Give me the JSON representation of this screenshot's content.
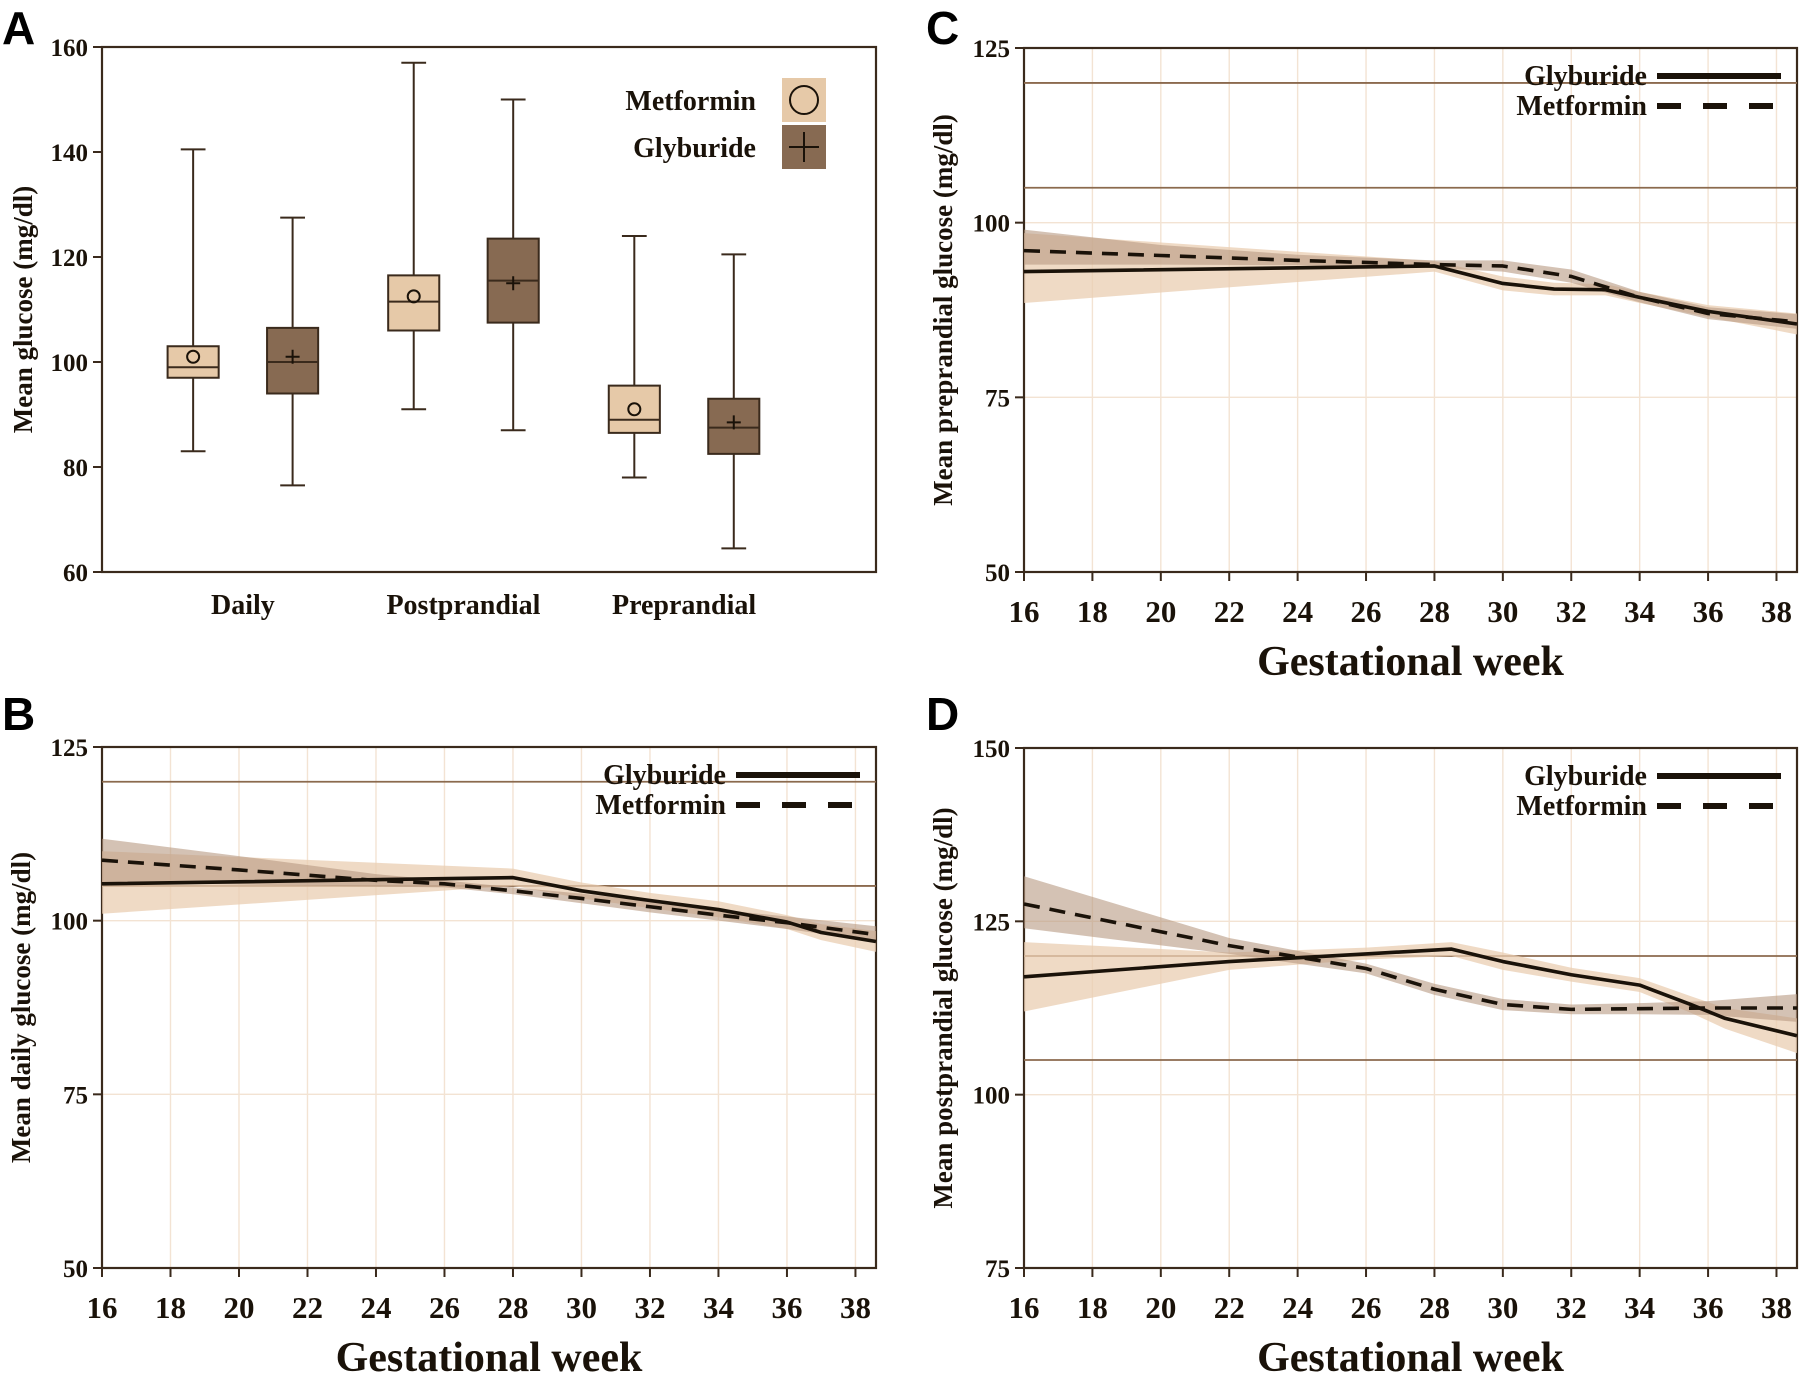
{
  "colors": {
    "metformin_box": "#e6c9a8",
    "glyburide_box": "#876a52",
    "axis": "#3a2a1c",
    "grid": "#f3e3d3",
    "ref_line": "#8b6a4e",
    "band_light": "#e9cdb2",
    "band_dark": "#b79a82",
    "line": "#1a1209"
  },
  "panels": {
    "A": {
      "letter": "A"
    },
    "B": {
      "letter": "B"
    },
    "C": {
      "letter": "C"
    },
    "D": {
      "letter": "D"
    }
  },
  "chart_data": [
    {
      "panel": "A",
      "type": "box",
      "ylabel": "Mean glucose (mg/dl)",
      "ylim": [
        60,
        160
      ],
      "yticks": [
        60,
        80,
        100,
        120,
        140,
        160
      ],
      "categories": [
        "Daily",
        "Postprandial",
        "Preprandial"
      ],
      "legend": {
        "position": "top-right",
        "entries": [
          {
            "name": "Metformin",
            "symbol": "circle"
          },
          {
            "name": "Glyburide",
            "symbol": "plus"
          }
        ]
      },
      "series": [
        {
          "name": "Metformin",
          "boxes": [
            {
              "min": 83,
              "q1": 97,
              "median": 99,
              "q3": 103,
              "max": 140.5,
              "mean": 101
            },
            {
              "min": 91,
              "q1": 106,
              "median": 111.5,
              "q3": 116.5,
              "max": 157,
              "mean": 112.5
            },
            {
              "min": 78,
              "q1": 86.5,
              "median": 89,
              "q3": 95.5,
              "max": 124,
              "mean": 91
            }
          ]
        },
        {
          "name": "Glyburide",
          "boxes": [
            {
              "min": 76.5,
              "q1": 94,
              "median": 100,
              "q3": 106.5,
              "max": 127.5,
              "mean": 101
            },
            {
              "min": 87,
              "q1": 107.5,
              "median": 115.5,
              "q3": 123.5,
              "max": 150,
              "mean": 115
            },
            {
              "min": 64.5,
              "q1": 82.5,
              "median": 87.5,
              "q3": 93,
              "max": 120.5,
              "mean": 88.5
            }
          ]
        }
      ]
    },
    {
      "panel": "B",
      "type": "line",
      "xlabel": "Gestational week",
      "ylabel": "Mean daily glucose (mg/dl)",
      "xlim": [
        16,
        38.6
      ],
      "ylim": [
        50,
        125
      ],
      "xticks": [
        16,
        18,
        20,
        22,
        24,
        26,
        28,
        30,
        32,
        34,
        36,
        38
      ],
      "yticks": [
        50,
        75,
        100,
        125
      ],
      "ref_lines": [
        105,
        120
      ],
      "legend": {
        "position": "top-right"
      },
      "series": [
        {
          "name": "Glyburide",
          "style": "solid",
          "x": [
            16,
            28,
            30,
            32,
            34,
            36,
            37,
            38.6
          ],
          "y": [
            105.3,
            106.2,
            104.3,
            102.9,
            101.6,
            99.8,
            98.3,
            97
          ],
          "lower": [
            101,
            105,
            103.2,
            101.8,
            100.5,
            98.8,
            97.2,
            95.5
          ],
          "upper": [
            110,
            107.5,
            105.5,
            104,
            102.8,
            100.8,
            99.5,
            98.5
          ]
        },
        {
          "name": "Metformin",
          "style": "dashed",
          "x": [
            16,
            20,
            24,
            26,
            28,
            30,
            32,
            34,
            36,
            38.6
          ],
          "y": [
            108.7,
            107.3,
            105.8,
            105.3,
            104.3,
            103.2,
            102,
            100.8,
            99.7,
            98
          ],
          "lower": [
            105.5,
            105.2,
            104.9,
            104.8,
            103.8,
            102.5,
            101.2,
            100,
            98.8,
            97
          ],
          "upper": [
            111.8,
            109.3,
            106.7,
            105.8,
            104.8,
            103.9,
            102.8,
            101.6,
            100.6,
            99.2
          ]
        }
      ]
    },
    {
      "panel": "C",
      "type": "line",
      "xlabel": "Gestational week",
      "ylabel": "Mean preprandial glucose (mg/dl)",
      "xlim": [
        16,
        38.6
      ],
      "ylim": [
        50,
        125
      ],
      "xticks": [
        16,
        18,
        20,
        22,
        24,
        26,
        28,
        30,
        32,
        34,
        36,
        38
      ],
      "yticks": [
        50,
        75,
        100,
        125
      ],
      "ref_lines": [
        105,
        120
      ],
      "legend": {
        "position": "top-right"
      },
      "series": [
        {
          "name": "Glyburide",
          "style": "solid",
          "x": [
            16,
            28,
            30,
            31.5,
            33,
            34,
            36,
            38.6
          ],
          "y": [
            93,
            93.8,
            91.3,
            90.5,
            90.4,
            89.3,
            87.3,
            85.5
          ],
          "lower": [
            88.5,
            93,
            90.3,
            89.6,
            89.6,
            88.5,
            86.5,
            84
          ],
          "upper": [
            98.5,
            94.5,
            92.3,
            91.4,
            91.2,
            90.1,
            88.2,
            87
          ]
        },
        {
          "name": "Metformin",
          "style": "dashed",
          "x": [
            16,
            20,
            24,
            28,
            30,
            32,
            34,
            36,
            38.6
          ],
          "y": [
            96,
            95.3,
            94.6,
            94,
            93.8,
            92.3,
            89.3,
            87,
            85.8
          ],
          "lower": [
            94,
            94,
            93.9,
            93.5,
            93,
            91.4,
            88.6,
            86.2,
            84.8
          ],
          "upper": [
            99,
            96.8,
            95.4,
            94.6,
            94.6,
            93.3,
            90.1,
            87.9,
            86.9
          ]
        }
      ]
    },
    {
      "panel": "D",
      "type": "line",
      "xlabel": "Gestational week",
      "ylabel": "Mean postprandial glucose (mg/dl)",
      "xlim": [
        16,
        38.6
      ],
      "ylim": [
        75,
        150
      ],
      "xticks": [
        16,
        18,
        20,
        22,
        24,
        26,
        28,
        30,
        32,
        34,
        36,
        38
      ],
      "yticks": [
        75,
        100,
        125,
        150
      ],
      "ref_lines": [
        105,
        120
      ],
      "legend": {
        "position": "top-right"
      },
      "series": [
        {
          "name": "Glyburide",
          "style": "solid",
          "x": [
            16,
            22,
            26,
            28.5,
            30,
            32,
            34,
            35.5,
            36.5,
            38.6
          ],
          "y": [
            117,
            119.2,
            120.3,
            121,
            119.2,
            117.3,
            115.8,
            113,
            111,
            108.5
          ],
          "lower": [
            112,
            118,
            119.5,
            120,
            118,
            116.3,
            114.8,
            111.8,
            109.5,
            106
          ],
          "upper": [
            122,
            120.5,
            121.2,
            122,
            120.5,
            118.3,
            116.8,
            114.2,
            112.5,
            111
          ]
        },
        {
          "name": "Metformin",
          "style": "dashed",
          "x": [
            16,
            22,
            26,
            28,
            30,
            32,
            34,
            36,
            38.6
          ],
          "y": [
            127.5,
            121.5,
            118.2,
            115.2,
            113,
            112.3,
            112.4,
            112.5,
            112.5
          ],
          "lower": [
            124,
            120.3,
            117.5,
            114.4,
            112.2,
            111.6,
            111.6,
            111.5,
            110.5
          ],
          "upper": [
            131.5,
            122.6,
            118.9,
            116,
            113.8,
            113,
            113.2,
            113.5,
            114.5
          ]
        }
      ]
    }
  ]
}
